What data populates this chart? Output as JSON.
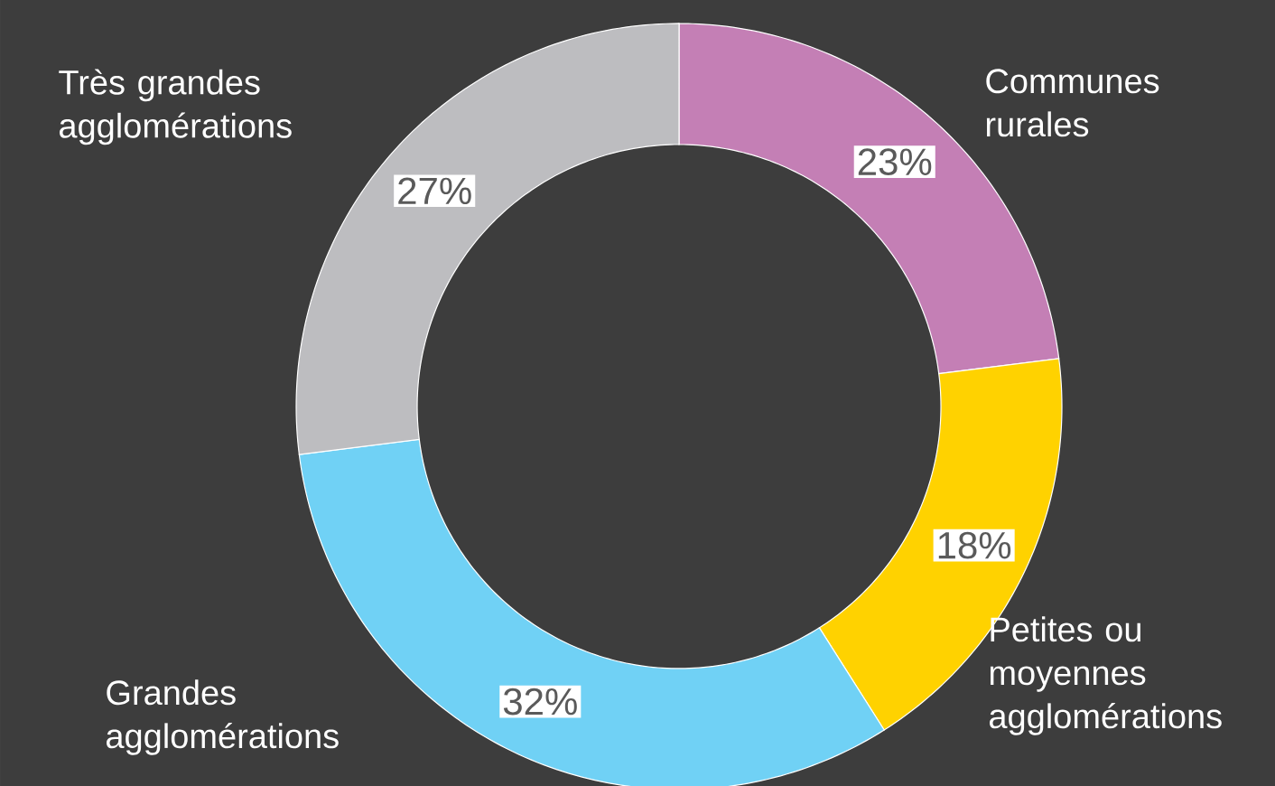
{
  "chart_data": {
    "type": "donut",
    "categories": [
      "Communes rurales",
      "Petites ou moyennes agglomérations",
      "Grandes agglomérations",
      "Très grandes agglomérations"
    ],
    "values": [
      23,
      18,
      32,
      27
    ],
    "colors": [
      "#c47fb5",
      "#ffd200",
      "#70d1f5",
      "#bdbdc0"
    ],
    "value_labels": [
      "23%",
      "18%",
      "32%",
      "27%"
    ]
  }
}
